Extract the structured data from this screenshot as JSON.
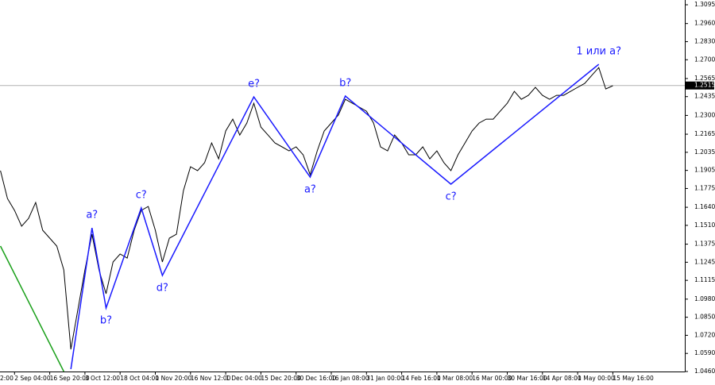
{
  "chart_data": {
    "type": "line",
    "categories": [
      "2:00",
      null,
      null,
      null,
      null,
      "2 Sep 04:00",
      null,
      null,
      null,
      null,
      "16 Sep 20:00",
      null,
      null,
      null,
      null,
      "3 Oct 12:00",
      null,
      null,
      null,
      null,
      "18 Oct 04:00",
      null,
      null,
      null,
      null,
      "1 Nov 20:00",
      null,
      null,
      null,
      null,
      "16 Nov 12:00",
      null,
      null,
      null,
      null,
      "1 Dec 04:00",
      null,
      null,
      null,
      null,
      "15 Dec 20:00",
      null,
      null,
      null,
      null,
      "30 Dec 16:00",
      null,
      null,
      null,
      null,
      "16 Jan 08:00",
      null,
      null,
      null,
      null,
      "31 Jan 00:00",
      null,
      null,
      null,
      null,
      "14 Feb 16:00",
      null,
      null,
      null,
      null,
      "1 Mar 08:00",
      null,
      null,
      null,
      null,
      "16 Mar 00:00",
      null,
      null,
      null,
      null,
      "30 Mar 16:00",
      null,
      null,
      null,
      null,
      "14 Apr 08:00",
      null,
      null,
      null,
      null,
      "1 May 00:00",
      null,
      null,
      null,
      null,
      "15 May 16:00"
    ],
    "series": [
      {
        "color": "#000000",
        "values": [
          null,
          null,
          null,
          1.1903,
          1.1703,
          1.1617,
          1.1504,
          1.156,
          1.1674,
          1.1475,
          1.1418,
          1.1361,
          1.119,
          1.0619,
          1.0904,
          1.119,
          1.1446,
          1.119,
          1.1019,
          1.1247,
          1.1304,
          1.1275,
          1.1475,
          1.1617,
          1.1646,
          1.1475,
          1.1247,
          1.1418,
          1.1446,
          1.176,
          1.1931,
          1.1903,
          1.196,
          1.2102,
          1.1988,
          1.2188,
          1.2273,
          1.2159,
          1.2245,
          1.2387,
          1.2216,
          1.2159,
          1.2102,
          1.2074,
          1.2045,
          1.2074,
          1.2017,
          1.1874,
          1.2045,
          1.2188,
          1.2245,
          1.2302,
          1.2416,
          1.2387,
          1.2359,
          1.233,
          1.2245,
          1.2074,
          1.2045,
          1.2159,
          1.2102,
          1.2017,
          1.2017,
          1.2074,
          1.1988,
          1.2045,
          1.196,
          1.1903,
          1.2017,
          1.2102,
          1.2188,
          1.2245,
          1.2273,
          1.2273,
          1.233,
          1.2387,
          1.2473,
          1.2416,
          1.2444,
          1.2502,
          1.2444,
          1.2416,
          1.2444,
          1.2444,
          1.2473,
          1.2502,
          1.253,
          1.2587,
          1.2644,
          1.249,
          1.2513
        ]
      }
    ],
    "waves": [
      {
        "color": "#1a1aff",
        "x": [
          13,
          16,
          18,
          23,
          26,
          39,
          47,
          52,
          67,
          88
        ],
        "values": [
          1.0477,
          1.1492,
          1.0916,
          1.1635,
          1.115,
          1.2433,
          1.1857,
          1.2439,
          1.1806,
          1.2667
        ],
        "labels": [
          null,
          "a?",
          "b?",
          "c?",
          "d?",
          "e?",
          "a?",
          "b?",
          "c?",
          "1 или а?"
        ]
      },
      {
        "color": "#1aa01a",
        "x": [
          3,
          12
        ],
        "values": [
          1.1361,
          1.046
        ],
        "labels": [
          null,
          null
        ]
      }
    ],
    "current_price": 1.2515,
    "ylim": [
      1.046,
      1.3095
    ],
    "yticks": [
      1.3095,
      {
        "value": 1.296,
        "label": "1.2960"
      },
      {
        "value": 1.283,
        "label": "1.2830"
      },
      {
        "value": 1.27,
        "label": "1.2700"
      },
      1.2565,
      1.2435,
      {
        "value": 1.23,
        "label": "1.2300"
      },
      1.2165,
      1.2035,
      1.1905,
      1.1775,
      {
        "value": 1.164,
        "label": "1.1640"
      },
      {
        "value": 1.151,
        "label": "1.1510"
      },
      1.1375,
      1.1245,
      1.1115,
      {
        "value": 1.098,
        "label": "1.0980"
      },
      {
        "value": 1.085,
        "label": "1.0850"
      },
      {
        "value": 1.072,
        "label": "1.0720"
      },
      {
        "value": 1.059,
        "label": "1.0590"
      },
      {
        "value": 1.046,
        "label": "1.0460"
      }
    ]
  }
}
